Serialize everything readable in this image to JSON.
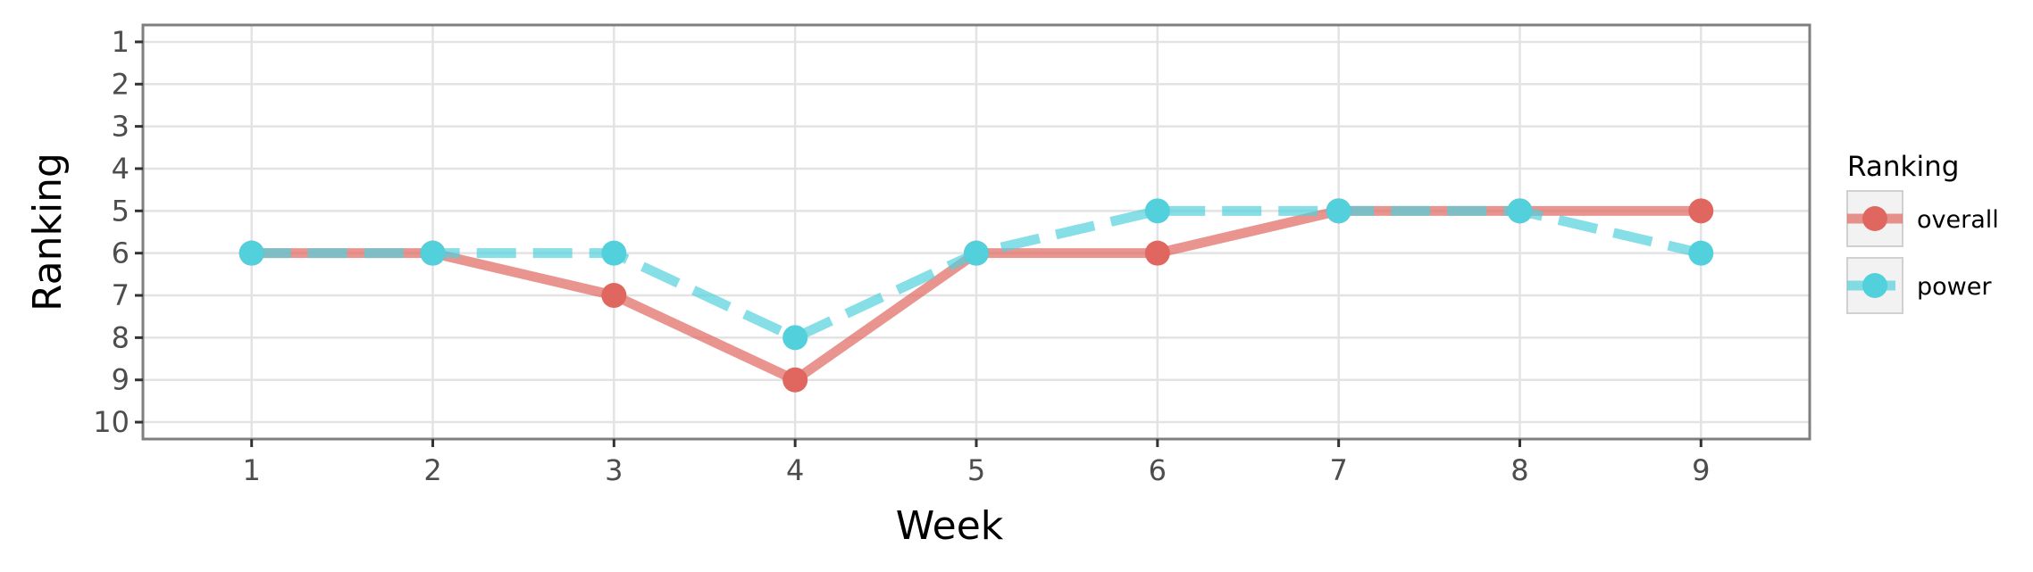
{
  "chart_data": {
    "type": "line",
    "title": "",
    "xlabel": "Week",
    "ylabel": "Ranking",
    "x": [
      1,
      2,
      3,
      4,
      5,
      6,
      7,
      8,
      9
    ],
    "xlim": [
      0.4,
      9.6
    ],
    "ylim": [
      10.4,
      0.6
    ],
    "y_reversed": true,
    "x_ticks": [
      "1",
      "2",
      "3",
      "4",
      "5",
      "6",
      "7",
      "8",
      "9"
    ],
    "y_ticks": [
      "1",
      "2",
      "3",
      "4",
      "5",
      "6",
      "7",
      "8",
      "9",
      "10"
    ],
    "grid": true,
    "legend": {
      "title": "Ranking",
      "placement": "right"
    },
    "series": [
      {
        "name": "overall",
        "color": "#e06760",
        "line_style": "solid",
        "values": [
          6,
          6,
          7,
          9,
          6,
          6,
          5,
          5,
          5
        ]
      },
      {
        "name": "power",
        "color": "#52d0dc",
        "line_style": "dashed",
        "values": [
          6,
          6,
          6,
          8,
          6,
          5,
          5,
          5,
          6
        ]
      }
    ]
  }
}
